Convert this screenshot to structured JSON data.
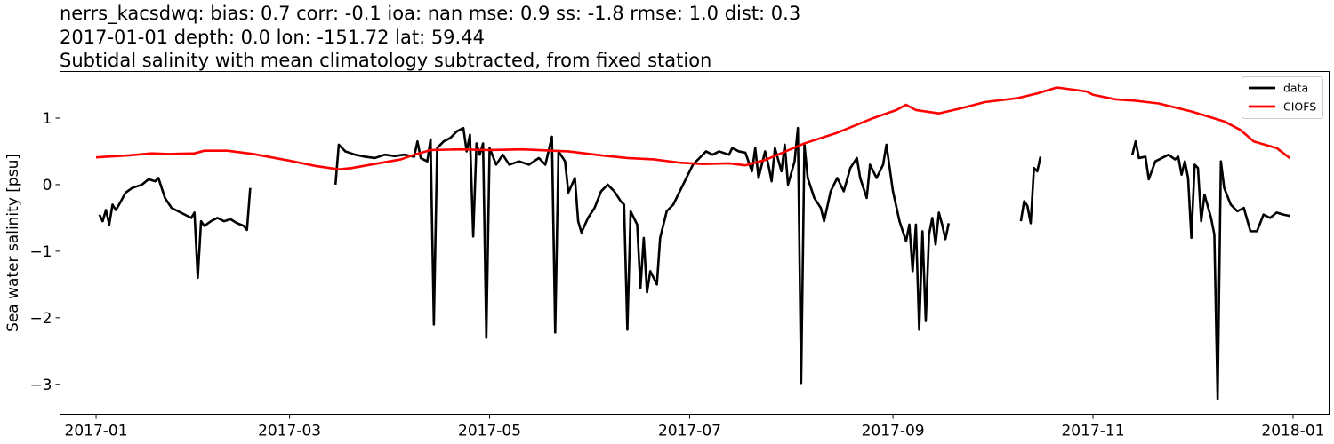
{
  "header": {
    "line1": "nerrs_kacsdwq: bias: 0.7  corr: -0.1  ioa: nan  mse: 0.9  ss: -1.8  rmse: 1.0  dist: 0.3",
    "line2": "2017-01-01 depth: 0.0 lon: -151.72 lat: 59.44",
    "line3": "Subtidal salinity with mean climatology subtracted, from fixed station"
  },
  "chart_data": {
    "type": "line",
    "title": "Subtidal salinity with mean climatology subtracted, from fixed station",
    "xlabel": "",
    "ylabel": "Sea water salinity [psu]",
    "x_type": "date",
    "xlim": [
      "2016-12-21",
      "2018-01-12"
    ],
    "ylim": [
      -3.45,
      1.7
    ],
    "x_ticks": [
      "2017-01-01",
      "2017-03-01",
      "2017-05-01",
      "2017-07-01",
      "2017-09-01",
      "2017-11-01",
      "2018-01-01"
    ],
    "x_tick_labels": [
      "2017-01",
      "2017-03",
      "2017-05",
      "2017-07",
      "2017-09",
      "2017-11",
      "2018-01"
    ],
    "y_ticks": [
      1,
      0,
      -1,
      -2,
      -3
    ],
    "y_tick_labels": [
      "1",
      "0",
      "−1",
      "−2",
      "−3"
    ],
    "grid": false,
    "legend_position": "top-right",
    "series": [
      {
        "name": "data",
        "color": "#000000",
        "segments": [
          [
            [
              "2017-01-02",
              -0.45
            ],
            [
              "2017-01-03",
              -0.55
            ],
            [
              "2017-01-04",
              -0.38
            ],
            [
              "2017-01-05",
              -0.6
            ],
            [
              "2017-01-06",
              -0.3
            ],
            [
              "2017-01-07",
              -0.38
            ],
            [
              "2017-01-08",
              -0.3
            ],
            [
              "2017-01-10",
              -0.12
            ],
            [
              "2017-01-12",
              -0.05
            ],
            [
              "2017-01-15",
              0.0
            ],
            [
              "2017-01-17",
              0.08
            ],
            [
              "2017-01-19",
              0.05
            ],
            [
              "2017-01-20",
              0.1
            ],
            [
              "2017-01-22",
              -0.2
            ],
            [
              "2017-01-24",
              -0.35
            ],
            [
              "2017-01-26",
              -0.4
            ],
            [
              "2017-01-28",
              -0.45
            ],
            [
              "2017-01-30",
              -0.5
            ],
            [
              "2017-01-31",
              -0.42
            ],
            [
              "2017-02-01",
              -1.4
            ],
            [
              "2017-02-02",
              -0.55
            ],
            [
              "2017-02-03",
              -0.62
            ],
            [
              "2017-02-05",
              -0.55
            ],
            [
              "2017-02-07",
              -0.5
            ],
            [
              "2017-02-09",
              -0.55
            ],
            [
              "2017-02-11",
              -0.52
            ],
            [
              "2017-02-13",
              -0.58
            ],
            [
              "2017-02-15",
              -0.62
            ],
            [
              "2017-02-16",
              -0.68
            ],
            [
              "2017-02-17",
              -0.05
            ]
          ],
          [
            [
              "2017-03-15",
              0.0
            ],
            [
              "2017-03-16",
              0.6
            ],
            [
              "2017-03-18",
              0.5
            ],
            [
              "2017-03-21",
              0.45
            ],
            [
              "2017-03-24",
              0.42
            ],
            [
              "2017-03-27",
              0.4
            ],
            [
              "2017-03-30",
              0.45
            ],
            [
              "2017-04-02",
              0.43
            ],
            [
              "2017-04-05",
              0.45
            ],
            [
              "2017-04-08",
              0.42
            ],
            [
              "2017-04-09",
              0.65
            ],
            [
              "2017-04-10",
              0.4
            ],
            [
              "2017-04-12",
              0.35
            ],
            [
              "2017-04-13",
              0.68
            ],
            [
              "2017-04-14",
              -2.1
            ],
            [
              "2017-04-15",
              0.55
            ],
            [
              "2017-04-17",
              0.65
            ],
            [
              "2017-04-19",
              0.7
            ],
            [
              "2017-04-21",
              0.8
            ],
            [
              "2017-04-23",
              0.85
            ],
            [
              "2017-04-24",
              0.5
            ],
            [
              "2017-04-25",
              0.75
            ],
            [
              "2017-04-26",
              -0.78
            ],
            [
              "2017-04-27",
              0.62
            ],
            [
              "2017-04-28",
              0.45
            ],
            [
              "2017-04-29",
              0.62
            ],
            [
              "2017-04-30",
              -2.3
            ],
            [
              "2017-05-01",
              0.55
            ],
            [
              "2017-05-03",
              0.3
            ],
            [
              "2017-05-05",
              0.45
            ],
            [
              "2017-05-07",
              0.3
            ],
            [
              "2017-05-10",
              0.35
            ],
            [
              "2017-05-13",
              0.3
            ],
            [
              "2017-05-16",
              0.4
            ],
            [
              "2017-05-18",
              0.3
            ],
            [
              "2017-05-20",
              0.72
            ],
            [
              "2017-05-21",
              -2.22
            ],
            [
              "2017-05-22",
              0.5
            ],
            [
              "2017-05-24",
              0.35
            ],
            [
              "2017-05-25",
              -0.12
            ],
            [
              "2017-05-27",
              0.1
            ],
            [
              "2017-05-28",
              -0.55
            ],
            [
              "2017-05-29",
              -0.72
            ],
            [
              "2017-05-31",
              -0.5
            ],
            [
              "2017-06-02",
              -0.35
            ],
            [
              "2017-06-04",
              -0.1
            ],
            [
              "2017-06-06",
              0.0
            ],
            [
              "2017-06-08",
              -0.1
            ],
            [
              "2017-06-10",
              -0.25
            ],
            [
              "2017-06-11",
              -0.3
            ],
            [
              "2017-06-12",
              -2.18
            ],
            [
              "2017-06-13",
              -0.4
            ],
            [
              "2017-06-15",
              -0.6
            ],
            [
              "2017-06-16",
              -1.55
            ],
            [
              "2017-06-17",
              -0.8
            ],
            [
              "2017-06-18",
              -1.62
            ],
            [
              "2017-06-19",
              -1.3
            ],
            [
              "2017-06-20",
              -1.4
            ],
            [
              "2017-06-21",
              -1.5
            ],
            [
              "2017-06-22",
              -0.8
            ],
            [
              "2017-06-24",
              -0.4
            ],
            [
              "2017-06-26",
              -0.3
            ],
            [
              "2017-06-28",
              -0.1
            ],
            [
              "2017-06-30",
              0.1
            ],
            [
              "2017-07-02",
              0.3
            ],
            [
              "2017-07-04",
              0.4
            ],
            [
              "2017-07-06",
              0.5
            ],
            [
              "2017-07-08",
              0.45
            ],
            [
              "2017-07-10",
              0.5
            ],
            [
              "2017-07-13",
              0.45
            ],
            [
              "2017-07-14",
              0.55
            ],
            [
              "2017-07-16",
              0.5
            ],
            [
              "2017-07-18",
              0.48
            ],
            [
              "2017-07-20",
              0.2
            ],
            [
              "2017-07-21",
              0.55
            ],
            [
              "2017-07-22",
              0.1
            ],
            [
              "2017-07-24",
              0.5
            ],
            [
              "2017-07-25",
              0.3
            ],
            [
              "2017-07-26",
              0.05
            ],
            [
              "2017-07-27",
              0.55
            ],
            [
              "2017-07-29",
              0.2
            ],
            [
              "2017-07-30",
              0.6
            ],
            [
              "2017-07-31",
              0.0
            ],
            [
              "2017-08-02",
              0.35
            ],
            [
              "2017-08-03",
              0.85
            ],
            [
              "2017-08-04",
              -2.98
            ],
            [
              "2017-08-05",
              0.6
            ],
            [
              "2017-08-06",
              0.1
            ],
            [
              "2017-08-08",
              -0.2
            ],
            [
              "2017-08-10",
              -0.35
            ],
            [
              "2017-08-11",
              -0.55
            ],
            [
              "2017-08-13",
              -0.1
            ],
            [
              "2017-08-15",
              0.1
            ],
            [
              "2017-08-17",
              -0.1
            ],
            [
              "2017-08-19",
              0.25
            ],
            [
              "2017-08-21",
              0.4
            ],
            [
              "2017-08-22",
              0.1
            ],
            [
              "2017-08-24",
              -0.2
            ],
            [
              "2017-08-25",
              0.3
            ],
            [
              "2017-08-27",
              0.1
            ],
            [
              "2017-08-29",
              0.3
            ],
            [
              "2017-08-30",
              0.6
            ],
            [
              "2017-09-01",
              -0.1
            ],
            [
              "2017-09-03",
              -0.55
            ],
            [
              "2017-09-05",
              -0.85
            ],
            [
              "2017-09-06",
              -0.6
            ],
            [
              "2017-09-07",
              -1.3
            ],
            [
              "2017-09-08",
              -0.6
            ],
            [
              "2017-09-09",
              -2.18
            ],
            [
              "2017-09-10",
              -0.7
            ],
            [
              "2017-09-11",
              -2.05
            ],
            [
              "2017-09-12",
              -0.75
            ],
            [
              "2017-09-13",
              -0.5
            ],
            [
              "2017-09-14",
              -0.9
            ],
            [
              "2017-09-15",
              -0.42
            ],
            [
              "2017-09-16",
              -0.6
            ],
            [
              "2017-09-17",
              -0.82
            ],
            [
              "2017-09-18",
              -0.58
            ]
          ],
          [
            [
              "2017-10-10",
              -0.55
            ],
            [
              "2017-10-11",
              -0.25
            ],
            [
              "2017-10-12",
              -0.32
            ],
            [
              "2017-10-13",
              -0.58
            ],
            [
              "2017-10-14",
              0.25
            ],
            [
              "2017-10-15",
              0.2
            ],
            [
              "2017-10-16",
              0.42
            ]
          ],
          [
            [
              "2017-11-13",
              0.45
            ],
            [
              "2017-11-14",
              0.65
            ],
            [
              "2017-11-15",
              0.4
            ],
            [
              "2017-11-17",
              0.42
            ],
            [
              "2017-11-18",
              0.08
            ],
            [
              "2017-11-20",
              0.35
            ],
            [
              "2017-11-22",
              0.4
            ],
            [
              "2017-11-24",
              0.45
            ],
            [
              "2017-11-26",
              0.38
            ],
            [
              "2017-11-27",
              0.42
            ],
            [
              "2017-11-28",
              0.15
            ],
            [
              "2017-11-29",
              0.35
            ],
            [
              "2017-11-30",
              0.1
            ],
            [
              "2017-12-01",
              -0.8
            ],
            [
              "2017-12-02",
              0.3
            ],
            [
              "2017-12-03",
              0.25
            ],
            [
              "2017-12-04",
              -0.55
            ],
            [
              "2017-12-05",
              -0.15
            ],
            [
              "2017-12-07",
              -0.5
            ],
            [
              "2017-12-08",
              -0.75
            ],
            [
              "2017-12-09",
              -3.22
            ],
            [
              "2017-12-10",
              0.35
            ],
            [
              "2017-12-11",
              -0.05
            ],
            [
              "2017-12-13",
              -0.3
            ],
            [
              "2017-12-15",
              -0.4
            ],
            [
              "2017-12-17",
              -0.35
            ],
            [
              "2017-12-19",
              -0.7
            ],
            [
              "2017-12-21",
              -0.7
            ],
            [
              "2017-12-23",
              -0.45
            ],
            [
              "2017-12-25",
              -0.5
            ],
            [
              "2017-12-27",
              -0.42
            ],
            [
              "2017-12-29",
              -0.45
            ],
            [
              "2017-12-31",
              -0.47
            ]
          ]
        ]
      },
      {
        "name": "CIOFS",
        "color": "#ff0000",
        "segments": [
          [
            [
              "2017-01-01",
              0.41
            ],
            [
              "2017-01-11",
              0.44
            ],
            [
              "2017-01-18",
              0.47
            ],
            [
              "2017-01-23",
              0.46
            ],
            [
              "2017-01-31",
              0.47
            ],
            [
              "2017-02-03",
              0.51
            ],
            [
              "2017-02-10",
              0.51
            ],
            [
              "2017-02-18",
              0.46
            ],
            [
              "2017-03-01",
              0.36
            ],
            [
              "2017-03-09",
              0.28
            ],
            [
              "2017-03-16",
              0.23
            ],
            [
              "2017-03-20",
              0.25
            ],
            [
              "2017-03-28",
              0.32
            ],
            [
              "2017-04-04",
              0.38
            ],
            [
              "2017-04-08",
              0.45
            ],
            [
              "2017-04-13",
              0.52
            ],
            [
              "2017-04-22",
              0.53
            ],
            [
              "2017-05-01",
              0.52
            ],
            [
              "2017-05-11",
              0.53
            ],
            [
              "2017-05-25",
              0.5
            ],
            [
              "2017-06-04",
              0.44
            ],
            [
              "2017-06-12",
              0.4
            ],
            [
              "2017-06-20",
              0.38
            ],
            [
              "2017-06-28",
              0.33
            ],
            [
              "2017-07-05",
              0.31
            ],
            [
              "2017-07-13",
              0.32
            ],
            [
              "2017-07-18",
              0.29
            ],
            [
              "2017-07-24",
              0.37
            ],
            [
              "2017-08-05",
              0.62
            ],
            [
              "2017-08-15",
              0.78
            ],
            [
              "2017-08-26",
              1.0
            ],
            [
              "2017-09-02",
              1.12
            ],
            [
              "2017-09-05",
              1.2
            ],
            [
              "2017-09-08",
              1.12
            ],
            [
              "2017-09-15",
              1.07
            ],
            [
              "2017-09-22",
              1.15
            ],
            [
              "2017-09-29",
              1.24
            ],
            [
              "2017-10-09",
              1.3
            ],
            [
              "2017-10-15",
              1.37
            ],
            [
              "2017-10-21",
              1.46
            ],
            [
              "2017-10-30",
              1.4
            ],
            [
              "2017-11-01",
              1.35
            ],
            [
              "2017-11-08",
              1.28
            ],
            [
              "2017-11-14",
              1.26
            ],
            [
              "2017-11-21",
              1.22
            ],
            [
              "2017-12-01",
              1.1
            ],
            [
              "2017-12-11",
              0.95
            ],
            [
              "2017-12-16",
              0.82
            ],
            [
              "2017-12-20",
              0.65
            ],
            [
              "2017-12-27",
              0.55
            ],
            [
              "2017-12-31",
              0.4
            ]
          ]
        ]
      }
    ]
  }
}
